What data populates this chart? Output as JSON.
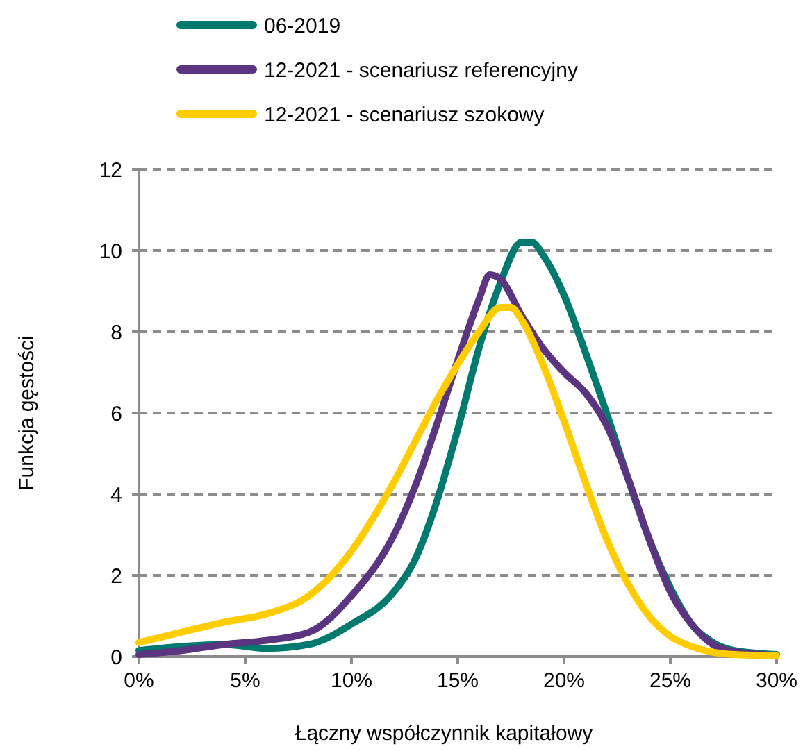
{
  "chart_data": {
    "type": "line",
    "xlabel": "Łączny współczynnik kapitałowy",
    "ylabel": "Funkcja gęstości",
    "xlim": [
      0,
      30
    ],
    "xticks": [
      {
        "value": 0,
        "label": "0%"
      },
      {
        "value": 5,
        "label": "5%"
      },
      {
        "value": 10,
        "label": "10%"
      },
      {
        "value": 15,
        "label": "15%"
      },
      {
        "value": 20,
        "label": "20%"
      },
      {
        "value": 25,
        "label": "25%"
      },
      {
        "value": 30,
        "label": "30%"
      }
    ],
    "ylim": [
      0,
      12
    ],
    "yticks": [
      0,
      2,
      4,
      6,
      8,
      10,
      12
    ],
    "grid": "y",
    "legend": "top",
    "marker": "none",
    "line_style": "solid",
    "series": [
      {
        "name": "06-2019",
        "color": "#007a6e",
        "x": [
          0,
          2,
          4,
          6,
          8,
          10,
          12,
          13,
          14,
          15,
          16,
          17,
          18,
          18.5,
          19,
          20,
          21,
          22,
          23,
          24,
          25,
          26,
          27,
          28,
          30
        ],
        "values": [
          0.15,
          0.25,
          0.3,
          0.2,
          0.3,
          0.8,
          1.6,
          2.4,
          3.8,
          5.6,
          7.6,
          9.2,
          10.2,
          10.2,
          9.9,
          8.9,
          7.5,
          6.0,
          4.4,
          2.9,
          1.7,
          0.8,
          0.35,
          0.15,
          0.05
        ]
      },
      {
        "name": "12-2021 - scenariusz referencyjny",
        "color": "#5c3580",
        "x": [
          0,
          2,
          4,
          6,
          8,
          10,
          12,
          13,
          14,
          15,
          16,
          16.5,
          17,
          18,
          19,
          20,
          21,
          22,
          23,
          24,
          25,
          26,
          27,
          28,
          30
        ],
        "values": [
          0.05,
          0.15,
          0.3,
          0.4,
          0.6,
          1.5,
          3.0,
          4.2,
          5.7,
          7.3,
          8.8,
          9.4,
          9.3,
          8.4,
          7.6,
          7.0,
          6.5,
          5.7,
          4.4,
          2.9,
          1.6,
          0.8,
          0.3,
          0.12,
          0.03
        ]
      },
      {
        "name": "12-2021 - scenariusz szokowy",
        "color": "#ffcc00",
        "x": [
          0,
          2,
          4,
          6,
          8,
          10,
          11,
          12,
          13,
          14,
          15,
          16,
          17,
          17.5,
          18,
          19,
          20,
          21,
          22,
          23,
          24,
          25,
          26,
          28,
          30
        ],
        "values": [
          0.35,
          0.6,
          0.85,
          1.05,
          1.5,
          2.6,
          3.4,
          4.3,
          5.3,
          6.3,
          7.2,
          8.0,
          8.6,
          8.6,
          8.3,
          7.2,
          5.8,
          4.3,
          2.9,
          1.8,
          1.0,
          0.5,
          0.25,
          0.05,
          0.02
        ]
      }
    ]
  }
}
